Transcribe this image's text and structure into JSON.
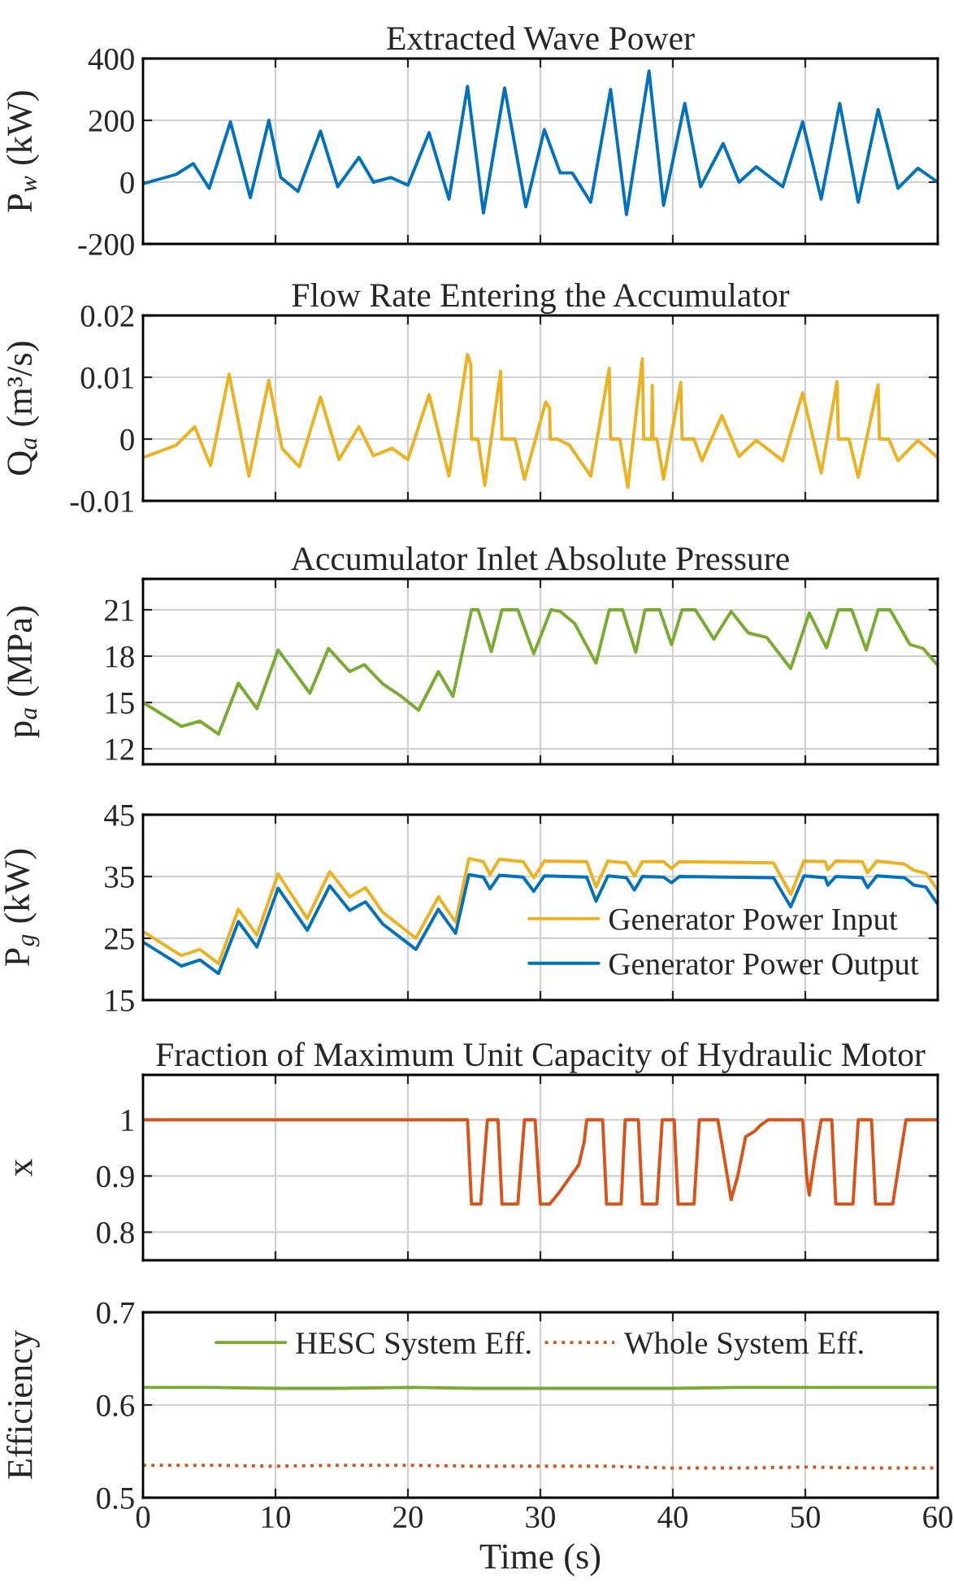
{
  "chart_data": [
    {
      "type": "line",
      "title": "Extracted Wave Power",
      "ylabel": "P$_{w}$ (kW)",
      "xlim": [
        0,
        60
      ],
      "xticks": [
        0,
        10,
        20,
        30,
        40,
        50,
        60
      ],
      "ylim": [
        -200,
        400
      ],
      "yticks": [
        -200,
        0,
        200,
        400
      ],
      "grid": true,
      "tick_labels": "y",
      "series": [
        {
          "color": "#0072bd",
          "x": [
            0,
            2.5,
            3.8,
            5.0,
            6.6,
            8.1,
            9.5,
            10.4,
            11.7,
            13.4,
            14.7,
            16.3,
            17.4,
            18.7,
            20.0,
            21.6,
            23.1,
            24.5,
            25.7,
            27.3,
            28.9,
            30.3,
            31.5,
            32.4,
            33.8,
            35.3,
            36.5,
            38.2,
            39.3,
            40.9,
            42.1,
            43.8,
            45.0,
            46.3,
            48.3,
            49.8,
            51.2,
            52.6,
            54.0,
            55.5,
            57.0,
            58.5,
            60
          ],
          "values": [
            -5,
            25,
            60,
            -20,
            195,
            -50,
            200,
            15,
            -30,
            165,
            -15,
            80,
            0,
            15,
            -10,
            160,
            -55,
            310,
            -100,
            305,
            -80,
            170,
            30,
            30,
            -65,
            300,
            -105,
            360,
            -75,
            255,
            -15,
            125,
            0,
            50,
            -15,
            195,
            -55,
            255,
            -65,
            235,
            -20,
            45,
            0
          ]
        }
      ]
    },
    {
      "type": "line",
      "title": "Flow Rate Entering the Accumulator",
      "ylabel": "Q$_{a}$ (m³/s)",
      "xlim": [
        0,
        60
      ],
      "xticks": [
        0,
        10,
        20,
        30,
        40,
        50,
        60
      ],
      "ylim": [
        -0.01,
        0.02
      ],
      "yticks": [
        -0.01,
        0,
        0.01,
        0.02
      ],
      "grid": true,
      "tick_labels": "y",
      "series": [
        {
          "color": "#edb120",
          "x": [
            0,
            2.5,
            3.9,
            5.1,
            6.5,
            8.0,
            9.5,
            10.5,
            11.8,
            13.4,
            14.8,
            16.3,
            17.4,
            18.8,
            20.0,
            21.6,
            23.1,
            24.5,
            24.75,
            24.8,
            25.3,
            25.8,
            27.0,
            27.1,
            28.1,
            28.8,
            30.4,
            30.7,
            30.75,
            31.3,
            32.2,
            33.8,
            35.2,
            35.3,
            36.0,
            36.6,
            37.7,
            37.8,
            38.4,
            38.45,
            38.5,
            38.8,
            39.3,
            40.6,
            40.7,
            41.6,
            42.2,
            43.7,
            45.0,
            46.3,
            48.3,
            49.8,
            51.2,
            52.4,
            52.5,
            53.3,
            54.0,
            55.5,
            55.6,
            56.3,
            57.0,
            58.5,
            60
          ],
          "values": [
            -0.003,
            -0.001,
            0.002,
            -0.0043,
            0.0105,
            -0.006,
            0.0095,
            -0.0015,
            -0.0045,
            0.0068,
            -0.0033,
            0.002,
            -0.0027,
            -0.0015,
            -0.0033,
            0.0072,
            -0.006,
            0.0137,
            0.012,
            0,
            0,
            -0.0075,
            0.011,
            0,
            0,
            -0.0065,
            0.006,
            0.005,
            0,
            0,
            -0.001,
            -0.006,
            0.0115,
            0,
            0,
            -0.0078,
            0.013,
            0,
            0,
            0.0087,
            0,
            0,
            -0.0065,
            0.0092,
            0,
            0,
            -0.0035,
            0.0038,
            -0.0028,
            -0.0002,
            -0.0035,
            0.0075,
            -0.0055,
            0.0093,
            0,
            0,
            -0.0062,
            0.0088,
            0,
            0,
            -0.0035,
            -0.0002,
            -0.003
          ]
        }
      ]
    },
    {
      "type": "line",
      "title": "Accumulator Inlet Absolute Pressure",
      "ylabel": "p$_{a}$ (MPa)",
      "xlim": [
        0,
        60
      ],
      "xticks": [
        0,
        10,
        20,
        30,
        40,
        50,
        60
      ],
      "ylim": [
        11,
        23
      ],
      "yticks": [
        12,
        15,
        18,
        21
      ],
      "grid": true,
      "tick_labels": "y",
      "series": [
        {
          "color": "#77ac30",
          "x": [
            0,
            2.9,
            4.3,
            5.7,
            7.2,
            8.6,
            10.2,
            12.6,
            14.0,
            15.6,
            16.7,
            18.1,
            19.5,
            20.8,
            22.3,
            23.4,
            24.8,
            25.3,
            26.3,
            27.1,
            28.3,
            29.5,
            30.8,
            31.5,
            32.6,
            34.2,
            35.2,
            36.2,
            37.2,
            37.9,
            39.0,
            39.9,
            40.7,
            41.7,
            43.1,
            44.4,
            45.7,
            47.1,
            48.9,
            50.3,
            51.6,
            52.5,
            53.5,
            54.6,
            55.5,
            56.4,
            57.9,
            58.9,
            60
          ],
          "values": [
            15,
            13.45,
            13.8,
            12.95,
            16.25,
            14.6,
            18.4,
            15.6,
            18.5,
            17.0,
            17.45,
            16.2,
            15.4,
            14.5,
            17.0,
            15.4,
            21,
            21,
            18.3,
            21,
            21,
            18.15,
            21,
            20.9,
            20.1,
            17.55,
            21,
            21,
            18.25,
            21,
            21,
            18.75,
            21,
            21,
            19.1,
            20.9,
            19.5,
            19.2,
            17.2,
            20.8,
            18.55,
            21,
            21,
            18.4,
            21,
            21,
            18.75,
            18.5,
            17.4
          ]
        }
      ]
    },
    {
      "type": "line",
      "ylabel": "P$_{g}$ (kW)",
      "xlim": [
        0,
        60
      ],
      "xticks": [
        0,
        10,
        20,
        30,
        40,
        50,
        60
      ],
      "ylim": [
        15,
        45
      ],
      "yticks": [
        15,
        25,
        35,
        45
      ],
      "grid": true,
      "tick_labels": "y",
      "legend": "bottom right",
      "series": [
        {
          "name": "Generator Power Input",
          "color": "#edb120",
          "x": [
            0,
            2.9,
            4.3,
            5.7,
            7.2,
            8.6,
            10.2,
            12.4,
            14.1,
            15.6,
            16.8,
            18.1,
            20.6,
            22.3,
            23.6,
            24.6,
            25.7,
            26.2,
            26.9,
            28.7,
            29.5,
            30.3,
            33.5,
            34.2,
            35.1,
            36.5,
            37.1,
            37.7,
            39.3,
            39.9,
            40.5,
            47.6,
            48.9,
            49.9,
            51.5,
            51.7,
            52.3,
            54.3,
            54.7,
            55.4,
            57.5,
            58.2,
            59.1,
            60
          ],
          "values": [
            26.1,
            22.2,
            23.2,
            20.9,
            29.7,
            25.5,
            35.4,
            28.2,
            35.8,
            31.7,
            33.2,
            29.2,
            25.0,
            31.7,
            27.6,
            37.9,
            37.4,
            35.3,
            37.8,
            37.4,
            34.8,
            37.5,
            37.4,
            33.3,
            37.5,
            37.2,
            35.1,
            37.4,
            37.4,
            36.3,
            37.4,
            37.2,
            32.1,
            37.5,
            37.4,
            36.1,
            37.5,
            37.4,
            35.6,
            37.5,
            37.0,
            36.0,
            35.5,
            32.8
          ]
        },
        {
          "name": "Generator Power Output",
          "color": "#0072bd",
          "x": [
            0,
            2.9,
            4.3,
            5.7,
            7.2,
            8.6,
            10.2,
            12.4,
            14.1,
            15.6,
            16.8,
            18.1,
            20.6,
            22.3,
            23.6,
            24.6,
            25.7,
            26.2,
            26.9,
            28.7,
            29.5,
            30.3,
            33.5,
            34.2,
            35.1,
            36.5,
            37.1,
            37.7,
            39.3,
            39.9,
            40.5,
            47.6,
            48.9,
            49.9,
            51.5,
            51.7,
            52.3,
            54.3,
            54.7,
            55.4,
            57.5,
            58.2,
            59.1,
            60
          ],
          "values": [
            24.4,
            20.5,
            21.5,
            19.3,
            27.7,
            23.6,
            33.1,
            26.3,
            33.5,
            29.5,
            30.9,
            27.3,
            23.2,
            29.7,
            25.8,
            35.3,
            34.9,
            33.0,
            35.2,
            34.9,
            32.6,
            35.1,
            34.9,
            31.0,
            35.1,
            34.8,
            32.8,
            35.0,
            34.9,
            34.0,
            35.0,
            34.8,
            30.1,
            35.1,
            34.8,
            33.6,
            35.0,
            34.8,
            33.2,
            35.1,
            34.8,
            33.6,
            33.3,
            30.5
          ]
        }
      ]
    },
    {
      "type": "line",
      "title": "Fraction of Maximum Unit Capacity of Hydraulic Motor",
      "ylabel": "x",
      "xlim": [
        0,
        60
      ],
      "xticks": [
        0,
        10,
        20,
        30,
        40,
        50,
        60
      ],
      "ylim": [
        0.75,
        1.08
      ],
      "yticks": [
        0.8,
        0.9,
        1
      ],
      "grid": true,
      "tick_labels": "y",
      "series": [
        {
          "color": "#d95319",
          "x": [
            0,
            24.5,
            24.8,
            25.5,
            26.0,
            26.8,
            27.1,
            28.3,
            28.8,
            29.6,
            30.0,
            30.7,
            31.4,
            32.3,
            32.9,
            33.3,
            33.5,
            34.7,
            35.0,
            36.1,
            36.4,
            37.4,
            37.7,
            38.8,
            39.2,
            40.1,
            40.4,
            41.6,
            42.0,
            42.6,
            43.4,
            43.9,
            44.4,
            44.9,
            45.5,
            46.2,
            46.6,
            47.2,
            49.8,
            50.1,
            50.3,
            50.7,
            51.2,
            52.0,
            52.3,
            53.6,
            54.0,
            55.0,
            55.3,
            56.6,
            57.6,
            60
          ],
          "values": [
            1,
            1,
            0.85,
            0.85,
            1,
            1,
            0.85,
            0.85,
            1,
            1,
            0.85,
            0.85,
            0.87,
            0.9,
            0.92,
            0.96,
            1,
            1,
            0.85,
            0.85,
            1,
            1,
            0.85,
            0.85,
            1,
            1,
            0.85,
            0.85,
            1,
            1,
            1,
            0.93,
            0.858,
            0.9,
            0.97,
            0.98,
            0.99,
            1,
            1,
            0.9,
            0.866,
            0.93,
            1,
            1,
            0.85,
            0.85,
            1,
            1,
            0.85,
            0.85,
            1,
            1
          ]
        }
      ]
    },
    {
      "type": "line",
      "ylabel": "Efficiency",
      "xlabel": "Time (s)",
      "xlim": [
        0,
        60
      ],
      "xticks": [
        0,
        10,
        20,
        30,
        40,
        50,
        60
      ],
      "ylim": [
        0.5,
        0.7
      ],
      "yticks": [
        0.5,
        0.6,
        0.7
      ],
      "grid": true,
      "legend": "top",
      "series": [
        {
          "name": "HESC System Eff.",
          "color": "#77ac30",
          "line_style": "solid",
          "x": [
            0,
            5,
            10,
            15,
            20,
            25,
            30,
            35,
            40,
            45,
            50,
            55,
            60
          ],
          "values": [
            0.619,
            0.619,
            0.618,
            0.618,
            0.619,
            0.618,
            0.618,
            0.618,
            0.618,
            0.619,
            0.619,
            0.619,
            0.619
          ]
        },
        {
          "name": "Whole System Eff.",
          "color": "#d95319",
          "line_style": "dotted",
          "x": [
            0,
            5,
            10,
            15,
            20,
            25,
            30,
            35,
            40,
            45,
            50,
            55,
            60
          ],
          "values": [
            0.535,
            0.535,
            0.534,
            0.535,
            0.535,
            0.534,
            0.534,
            0.534,
            0.532,
            0.532,
            0.533,
            0.532,
            0.532
          ]
        }
      ]
    }
  ]
}
